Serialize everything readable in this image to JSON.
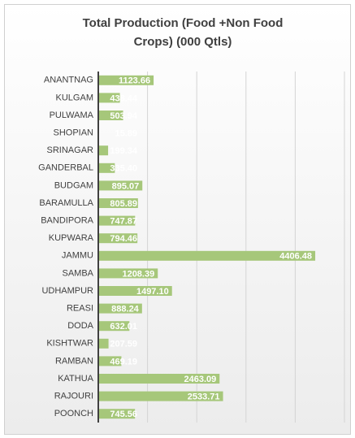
{
  "chart_data": {
    "type": "bar",
    "orientation": "horizontal",
    "title": "Total Production (Food +Non Food Crops) (000 Qtls)",
    "categories": [
      "ANANTNAG",
      "KULGAM",
      "PULWAMA",
      "SHOPIAN",
      "SRINAGAR",
      "GANDERBAL",
      "BUDGAM",
      "BARAMULLA",
      "BANDIPORA",
      "KUPWARA",
      "JAMMU",
      "SAMBA",
      "UDHAMPUR",
      "REASI",
      "DODA",
      "KISHTWAR",
      "RAMBAN",
      "KATHUA",
      "RAJOURI",
      "POONCH"
    ],
    "values": [
      1123.66,
      438.44,
      503.94,
      15.89,
      199.34,
      335.4,
      895.07,
      805.89,
      747.87,
      794.46,
      4406.48,
      1208.39,
      1497.1,
      888.24,
      632.01,
      207.59,
      469.19,
      2463.09,
      2533.71,
      745.56
    ],
    "value_labels": [
      "1123.66",
      "438.44",
      "503.94",
      "15.89",
      "199.34",
      "335.40",
      "895.07",
      "805.89",
      "747.87",
      "794.46",
      "4406.48",
      "1208.39",
      "1497.10",
      "888.24",
      "632.01",
      "207.59",
      "469.19",
      "2463.09",
      "2533.71",
      "745.56"
    ],
    "color": "#a6c77a",
    "xlim": [
      0,
      5000
    ],
    "xticks": [
      0,
      1000,
      2000,
      3000,
      4000,
      5000
    ],
    "grid": true
  }
}
